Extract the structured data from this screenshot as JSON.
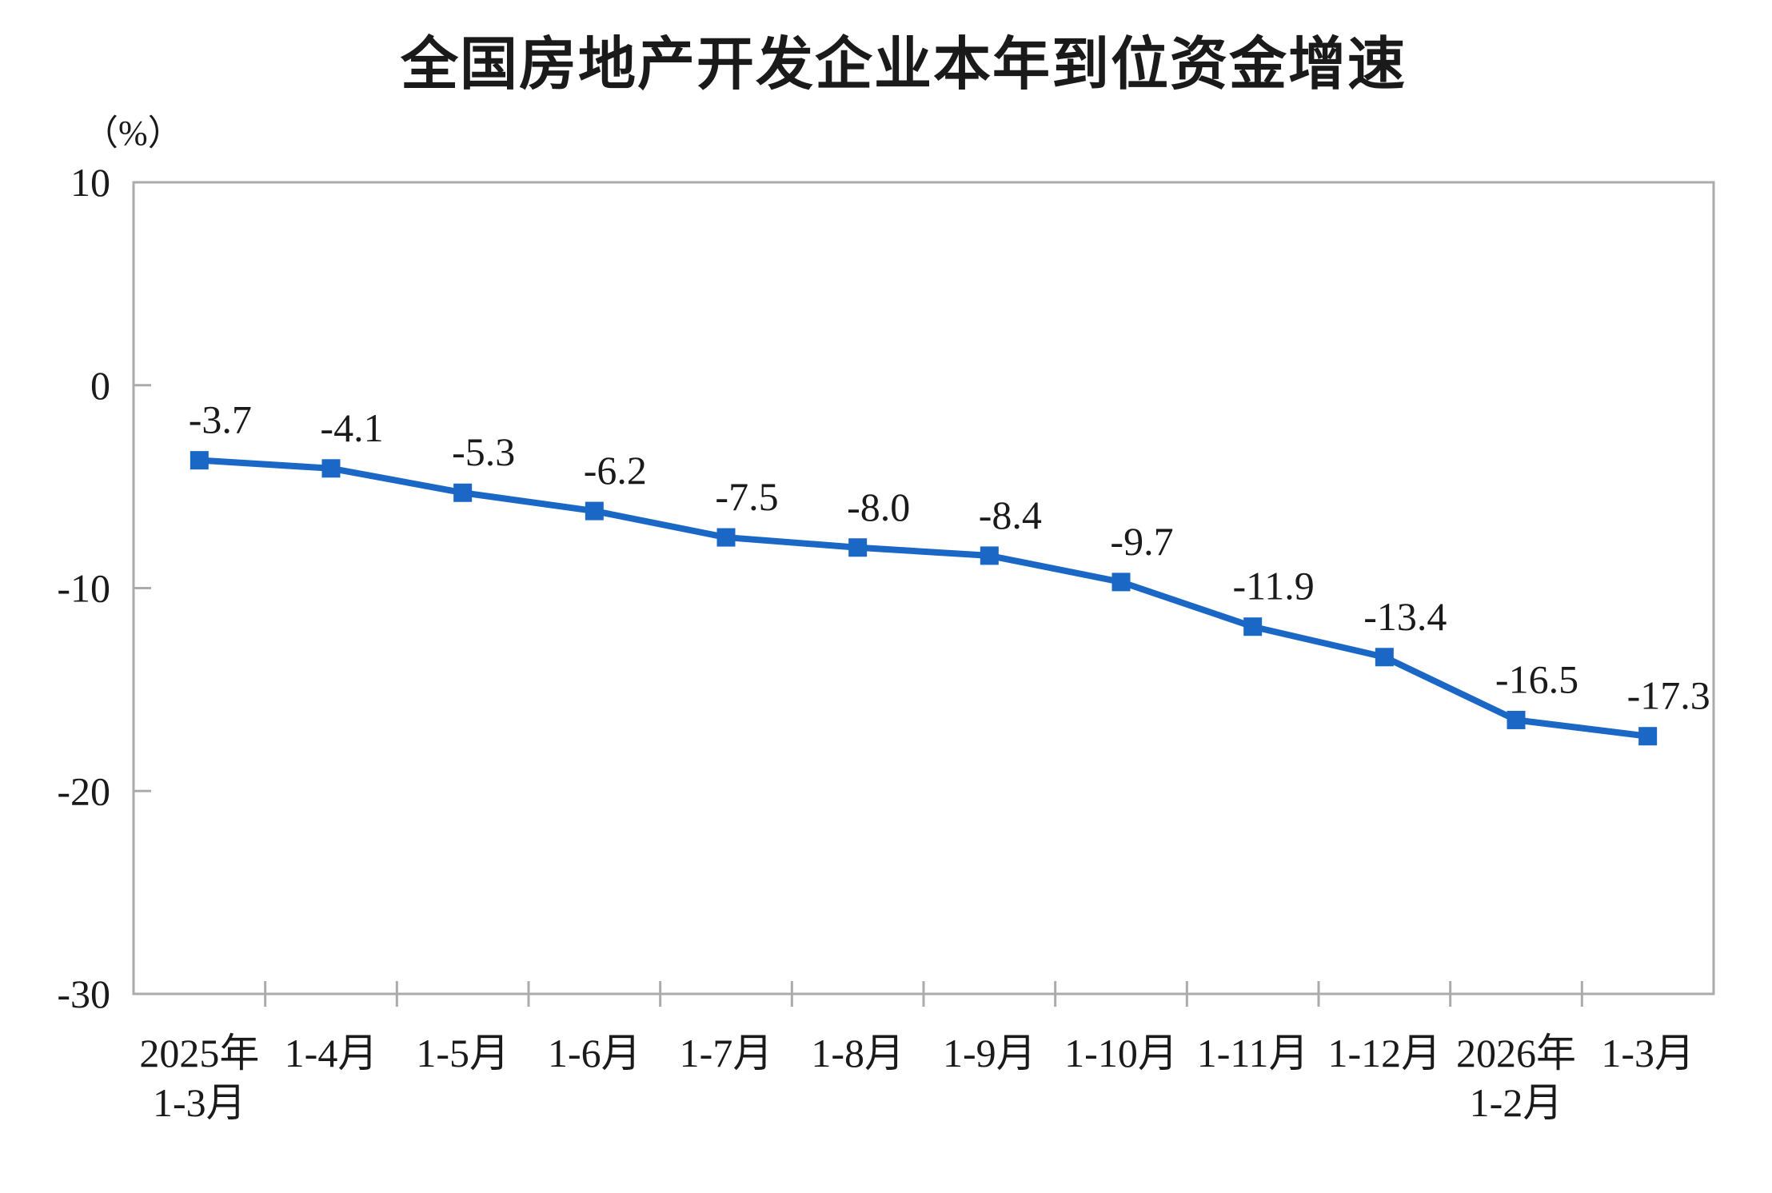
{
  "chart": {
    "title": "全国房地产开发企业本年到位资金增速",
    "y_unit_label": "（%）"
  },
  "chart_data": {
    "type": "line",
    "title": "全国房地产开发企业本年到位资金增速",
    "ylabel": "（%）",
    "xlabel": "",
    "categories": [
      "2025年\n1-3月",
      "1-4月",
      "1-5月",
      "1-6月",
      "1-7月",
      "1-8月",
      "1-9月",
      "1-10月",
      "1-11月",
      "1-12月",
      "2026年\n1-2月",
      "1-3月"
    ],
    "values": [
      -3.7,
      -4.1,
      -5.3,
      -6.2,
      -7.5,
      -8.0,
      -8.4,
      -9.7,
      -11.9,
      -13.4,
      -16.5,
      -17.3
    ],
    "data_labels": [
      "-3.7",
      "-4.1",
      "-5.3",
      "-6.2",
      "-7.5",
      "-8.0",
      "-8.4",
      "-9.7",
      "-11.9",
      "-13.4",
      "-16.5",
      "-17.3"
    ],
    "ylim": [
      -30,
      10
    ],
    "yticks": [
      10,
      0,
      -10,
      -20,
      -30
    ],
    "grid": false,
    "legend": "none",
    "marker": "square",
    "line_color": "#1A67C5",
    "marker_color": "#1A67C5",
    "axis_color": "#ABABAB",
    "text_color": "#1a1a1a"
  }
}
